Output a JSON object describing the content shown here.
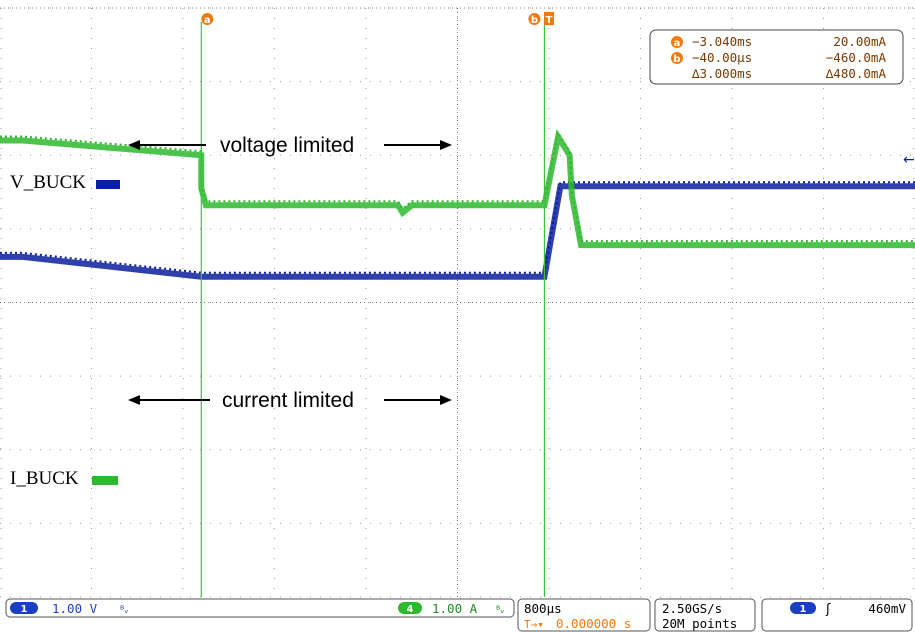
{
  "chart_data": {
    "type": "line",
    "xlim_us": [
      -4800,
      3200
    ],
    "grid": true,
    "x_divisions": 10,
    "y_divisions": 8,
    "colors": {
      "ch1": "#0a1f9e",
      "ch4": "#2eb82e",
      "cursor": "#39c439",
      "accent": "#f07a10",
      "grid": "#9a9a9a"
    },
    "series": [
      {
        "name": "V_BUCK",
        "channel": 1,
        "scale_per_div": "1.00 V",
        "time_us": [
          -4800,
          -4600,
          -3040,
          -3040,
          -40,
          -40,
          100,
          3200
        ],
        "divs": [
          -0.62,
          -0.62,
          -0.35,
          -0.35,
          -0.35,
          -0.35,
          -1.58,
          -1.58
        ]
      },
      {
        "name": "I_BUCK",
        "channel": 4,
        "scale_per_div": "1.00 A",
        "time_us": [
          -4800,
          -4600,
          -3040,
          -3040,
          -3000,
          -2400,
          -1600,
          -1320,
          -1280,
          -1200,
          -520,
          -40,
          -40,
          80,
          180,
          200,
          280,
          3200
        ],
        "divs": [
          -2.2,
          -2.2,
          -2.0,
          -1.55,
          -1.32,
          -1.32,
          -1.32,
          -1.32,
          -1.22,
          -1.32,
          -1.32,
          -1.32,
          -1.32,
          -2.25,
          -2.0,
          -1.45,
          -0.78,
          -0.78
        ]
      }
    ],
    "annotations": [
      {
        "text": "voltage limited"
      },
      {
        "text": "current limited"
      }
    ]
  },
  "cursors": {
    "a": {
      "tag": "a",
      "time": "−3.040ms",
      "value": "20.00mA"
    },
    "b": {
      "tag": "b",
      "time": "−40.00µs",
      "value": "−460.0mA"
    },
    "delta": {
      "time": "∆3.000ms",
      "value": "∆480.0mA"
    }
  },
  "trigger_marker": "T",
  "status_bar": {
    "ch1": {
      "badge": "1",
      "scale": "1.00 V"
    },
    "ch4": {
      "badge": "4",
      "scale": "1.00 A"
    },
    "timebase": "800µs",
    "delay": "0.000000 s",
    "sample_rate": "2.50GS/s",
    "record_length": "20M points",
    "trigger": {
      "badge": "1",
      "level": "460mV"
    }
  }
}
